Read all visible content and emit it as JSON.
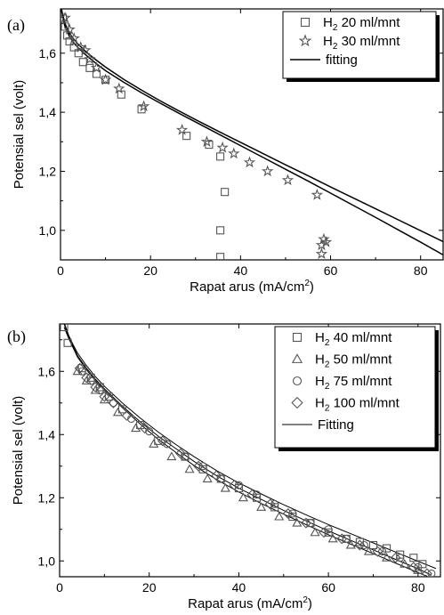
{
  "chart_data": [
    {
      "type": "scatter",
      "panel_label": "(a)",
      "xlabel": "Rapat arus (mA/cm",
      "xlabel_sup": "2",
      "xlabel_end": ")",
      "ylabel": "Potensial sel (volt)",
      "xlim": [
        0,
        85
      ],
      "ylim": [
        0.9,
        1.75
      ],
      "xticks": [
        0,
        20,
        40,
        60,
        80
      ],
      "xtick_labels": [
        "0",
        "20",
        "40",
        "60",
        "80"
      ],
      "yticks": [
        1.0,
        1.2,
        1.4,
        1.6
      ],
      "ytick_labels": [
        "1,0",
        "1,2",
        "1,4",
        "1,6"
      ],
      "legend_position": "top-right",
      "series": [
        {
          "name_main": "H",
          "name_sub": "2",
          "name_rest": " 20 ml/mnt",
          "marker": "square",
          "x": [
            0.5,
            1.0,
            1.5,
            2.0,
            3.0,
            4.0,
            5.0,
            6.5,
            8.0,
            10.0,
            13.5,
            18.0,
            28.0,
            33.0,
            35.5,
            36.5,
            35.5,
            35.5
          ],
          "y": [
            1.72,
            1.69,
            1.66,
            1.64,
            1.62,
            1.6,
            1.57,
            1.55,
            1.53,
            1.51,
            1.46,
            1.41,
            1.32,
            1.29,
            1.25,
            1.13,
            1.0,
            0.91
          ]
        },
        {
          "name_main": "H",
          "name_sub": "2",
          "name_rest": " 30 ml/mnt",
          "marker": "star",
          "x": [
            1.0,
            2.0,
            3.0,
            4.5,
            5.5,
            6.5,
            8.0,
            10.0,
            13.0,
            18.5,
            27.0,
            32.5,
            36.0,
            38.5,
            42.0,
            46.0,
            50.5,
            57.0,
            58.5,
            59.0,
            58.0,
            58.0
          ],
          "y": [
            1.72,
            1.68,
            1.65,
            1.62,
            1.61,
            1.58,
            1.55,
            1.51,
            1.48,
            1.42,
            1.34,
            1.3,
            1.28,
            1.26,
            1.23,
            1.2,
            1.17,
            1.12,
            0.97,
            0.96,
            0.95,
            0.92
          ]
        }
      ],
      "fits": [
        {
          "name": "fitting",
          "x": [
            0.05,
            0.5,
            1,
            2,
            3,
            4,
            6,
            8,
            10,
            14,
            18,
            22,
            26,
            30,
            35,
            40,
            45,
            50,
            55,
            60,
            65,
            70,
            75,
            80,
            85
          ],
          "y": [
            1.76,
            1.72,
            1.69,
            1.656,
            1.634,
            1.617,
            1.589,
            1.564,
            1.541,
            1.502,
            1.466,
            1.432,
            1.399,
            1.367,
            1.327,
            1.287,
            1.247,
            1.207,
            1.167,
            1.126,
            1.085,
            1.044,
            1.002,
            0.96,
            0.917
          ]
        },
        {
          "name": "",
          "x": [
            0.05,
            0.5,
            1,
            2,
            3,
            4,
            6,
            8,
            10,
            14,
            18,
            22,
            26,
            30,
            35,
            40,
            45,
            50,
            55,
            60,
            65,
            70,
            75,
            80,
            85
          ],
          "y": [
            1.76,
            1.73,
            1.7,
            1.667,
            1.646,
            1.629,
            1.6,
            1.576,
            1.553,
            1.512,
            1.475,
            1.44,
            1.407,
            1.375,
            1.336,
            1.298,
            1.26,
            1.222,
            1.185,
            1.147,
            1.11,
            1.073,
            1.036,
            0.999,
            0.962
          ]
        }
      ]
    },
    {
      "type": "scatter",
      "panel_label": "(b)",
      "xlabel": "Rapat arus (mA/cm",
      "xlabel_sup": "2",
      "xlabel_end": ")",
      "ylabel": "Potensial sel (volt)",
      "xlim": [
        0,
        85
      ],
      "ylim": [
        0.95,
        1.75
      ],
      "xticks": [
        0,
        20,
        40,
        60,
        80
      ],
      "xtick_labels": [
        "0",
        "20",
        "40",
        "60",
        "80"
      ],
      "yticks": [
        1.0,
        1.2,
        1.4,
        1.6
      ],
      "ytick_labels": [
        "1,0",
        "1,2",
        "1,4",
        "1,6"
      ],
      "legend_position": "top-right",
      "series": [
        {
          "name_main": "H",
          "name_sub": "2",
          "name_rest": " 40 ml/mnt",
          "marker": "square",
          "x": [
            1,
            1.8,
            5,
            7,
            9,
            11,
            14,
            18,
            22,
            28,
            32,
            36,
            40,
            44,
            48,
            52,
            56,
            60,
            64,
            67,
            70,
            73,
            76,
            79,
            81
          ],
          "y": [
            1.74,
            1.69,
            1.61,
            1.58,
            1.55,
            1.52,
            1.48,
            1.43,
            1.38,
            1.33,
            1.29,
            1.26,
            1.23,
            1.2,
            1.17,
            1.14,
            1.12,
            1.09,
            1.07,
            1.06,
            1.05,
            1.04,
            1.02,
            1.01,
            0.99
          ]
        },
        {
          "name_main": "H",
          "name_sub": "2",
          "name_rest": " 50 ml/mnt",
          "marker": "triangle",
          "x": [
            4,
            6,
            8,
            10,
            13,
            17,
            21,
            25,
            29,
            33,
            37,
            41,
            45,
            49,
            53,
            57,
            61,
            65,
            69,
            73,
            77,
            80
          ],
          "y": [
            1.6,
            1.57,
            1.54,
            1.51,
            1.47,
            1.42,
            1.37,
            1.33,
            1.29,
            1.26,
            1.23,
            1.2,
            1.17,
            1.14,
            1.12,
            1.09,
            1.07,
            1.05,
            1.03,
            1.01,
            0.99,
            0.97
          ]
        },
        {
          "name_main": "H",
          "name_sub": "2",
          "name_rest": " 75 ml/mnt",
          "marker": "circle",
          "x": [
            5,
            7,
            9,
            12,
            16,
            20,
            24,
            28,
            32,
            36,
            40,
            44,
            48,
            52,
            56,
            60,
            64,
            68,
            72,
            76,
            80,
            83
          ],
          "y": [
            1.6,
            1.57,
            1.54,
            1.5,
            1.45,
            1.41,
            1.37,
            1.33,
            1.3,
            1.26,
            1.24,
            1.21,
            1.18,
            1.15,
            1.12,
            1.1,
            1.07,
            1.05,
            1.03,
            1.01,
            0.98,
            0.96
          ]
        },
        {
          "name_main": "H",
          "name_sub": "2",
          "name_rest": " 100 ml/mnt",
          "marker": "diamond",
          "x": [
            4.5,
            6,
            8,
            10,
            12,
            15,
            19,
            23,
            27,
            31,
            35,
            39,
            43,
            47,
            51,
            55,
            59,
            63,
            67,
            71,
            75,
            79,
            82
          ],
          "y": [
            1.61,
            1.58,
            1.55,
            1.52,
            1.5,
            1.46,
            1.42,
            1.38,
            1.34,
            1.3,
            1.27,
            1.24,
            1.21,
            1.18,
            1.15,
            1.12,
            1.09,
            1.07,
            1.05,
            1.03,
            1.01,
            0.98,
            0.96
          ]
        }
      ],
      "fits": [
        {
          "name": "Fitting",
          "x": [
            1.0,
            2,
            3,
            4,
            6,
            8,
            10,
            14,
            18,
            22,
            26,
            30,
            35,
            40,
            45,
            50,
            55,
            60,
            65,
            70,
            75,
            80,
            83
          ],
          "y": [
            1.75,
            1.71,
            1.68,
            1.65,
            1.61,
            1.575,
            1.545,
            1.49,
            1.44,
            1.395,
            1.355,
            1.315,
            1.27,
            1.23,
            1.195,
            1.16,
            1.127,
            1.095,
            1.065,
            1.035,
            1.005,
            0.975,
            0.955
          ]
        },
        {
          "name": "",
          "x": [
            1.0,
            2,
            3,
            4,
            6,
            8,
            10,
            14,
            18,
            22,
            26,
            30,
            35,
            40,
            45,
            50,
            55,
            60,
            65,
            70,
            75,
            80,
            82
          ],
          "y": [
            1.74,
            1.705,
            1.675,
            1.645,
            1.605,
            1.57,
            1.54,
            1.485,
            1.433,
            1.385,
            1.343,
            1.302,
            1.258,
            1.218,
            1.182,
            1.148,
            1.115,
            1.083,
            1.053,
            1.023,
            0.993,
            0.963,
            0.952
          ]
        },
        {
          "name": "",
          "x": [
            1.0,
            2,
            3,
            4,
            6,
            8,
            10,
            14,
            18,
            22,
            26,
            30,
            35,
            40,
            45,
            50,
            55,
            60,
            65,
            70,
            75,
            80,
            84
          ],
          "y": [
            1.755,
            1.715,
            1.685,
            1.658,
            1.618,
            1.583,
            1.553,
            1.5,
            1.452,
            1.408,
            1.368,
            1.33,
            1.286,
            1.247,
            1.212,
            1.178,
            1.146,
            1.115,
            1.086,
            1.057,
            1.028,
            0.999,
            0.976
          ]
        }
      ]
    }
  ]
}
